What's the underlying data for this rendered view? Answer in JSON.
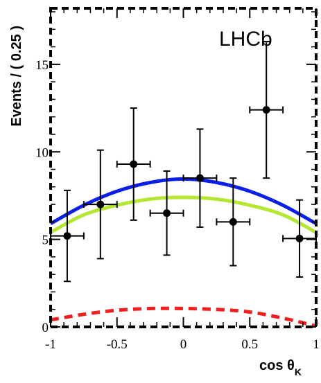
{
  "chart_data": {
    "type": "scatter",
    "brand_label": "LHCb",
    "xlabel": "cos θ",
    "xlabel_subscript": "K",
    "ylabel": "Events / ( 0.25 )",
    "xlim": [
      -1,
      1
    ],
    "ylim": [
      0,
      18.2
    ],
    "xticks": [
      -1,
      -0.5,
      0,
      0.5,
      1
    ],
    "xtick_labels": [
      "-1",
      "-0.5",
      "0",
      "0.5",
      "1"
    ],
    "yticks": [
      0,
      5,
      10,
      15
    ],
    "ytick_labels": [
      "0",
      "5",
      "10",
      "15"
    ],
    "grid": false,
    "series": [
      {
        "kind": "points_with_errors",
        "color": "#000000",
        "points": [
          {
            "x": -0.875,
            "y": 5.2,
            "xerr": 0.125,
            "yerr_low": 2.6,
            "yerr_high": 2.6
          },
          {
            "x": -0.625,
            "y": 7.0,
            "xerr": 0.125,
            "yerr_low": 3.1,
            "yerr_high": 3.1
          },
          {
            "x": -0.375,
            "y": 9.3,
            "xerr": 0.125,
            "yerr_low": 3.2,
            "yerr_high": 3.2
          },
          {
            "x": -0.125,
            "y": 6.5,
            "xerr": 0.125,
            "yerr_low": 2.4,
            "yerr_high": 2.4
          },
          {
            "x": 0.125,
            "y": 8.5,
            "xerr": 0.125,
            "yerr_low": 2.8,
            "yerr_high": 2.8
          },
          {
            "x": 0.375,
            "y": 6.0,
            "xerr": 0.125,
            "yerr_low": 2.5,
            "yerr_high": 2.5
          },
          {
            "x": 0.625,
            "y": 12.4,
            "xerr": 0.125,
            "yerr_low": 3.9,
            "yerr_high": 3.9
          },
          {
            "x": 0.875,
            "y": 5.05,
            "xerr": 0.125,
            "yerr_low": 2.2,
            "yerr_high": 2.2
          }
        ]
      },
      {
        "kind": "curve",
        "color": "#0a1ee6",
        "style": "solid",
        "x": [
          -1,
          -0.75,
          -0.5,
          -0.25,
          0,
          0.25,
          0.5,
          0.75,
          1
        ],
        "y": [
          5.9,
          6.95,
          7.75,
          8.25,
          8.45,
          8.25,
          7.75,
          6.95,
          5.9
        ]
      },
      {
        "kind": "curve",
        "color": "#b4e632",
        "style": "solid",
        "x": [
          -1,
          -0.75,
          -0.5,
          -0.25,
          0,
          0.25,
          0.5,
          0.75,
          1
        ],
        "y": [
          5.4,
          6.4,
          6.95,
          7.3,
          7.4,
          7.3,
          6.95,
          6.4,
          5.4
        ]
      },
      {
        "kind": "curve",
        "color": "#f02020",
        "style": "dashed",
        "x": [
          -1,
          -0.75,
          -0.5,
          -0.25,
          0,
          0.25,
          0.5,
          0.75,
          1
        ],
        "y": [
          0.4,
          0.72,
          0.95,
          1.05,
          1.05,
          1.0,
          0.85,
          0.5,
          0.05
        ]
      }
    ]
  }
}
